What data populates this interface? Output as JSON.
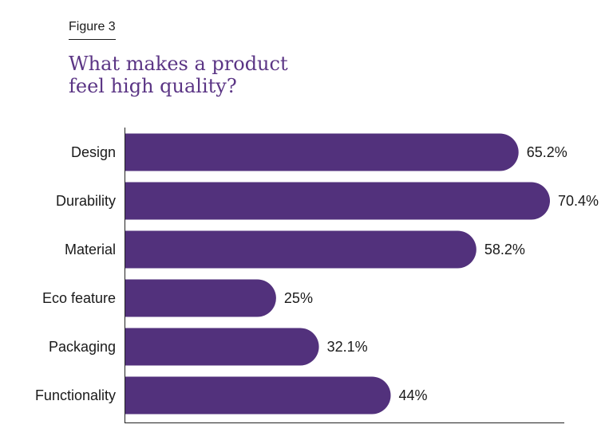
{
  "figure": {
    "label": "Figure 3"
  },
  "colors": {
    "bar": "#52317c",
    "axis": "#222222"
  },
  "chart_data": {
    "type": "bar",
    "orientation": "horizontal",
    "title": "What makes a product feel high quality?",
    "categories": [
      "Design",
      "Durability",
      "Material",
      "Eco feature",
      "Packaging",
      "Functionality"
    ],
    "values": [
      65.2,
      70.4,
      58.2,
      25,
      32.1,
      44
    ],
    "value_labels": [
      "65.2%",
      "70.4%",
      "58.2%",
      "25%",
      "32.1%",
      "44%"
    ],
    "unit": "%",
    "xlabel": "",
    "ylabel": "",
    "xlim": [
      0,
      100
    ],
    "grid": false,
    "legend": "none"
  }
}
